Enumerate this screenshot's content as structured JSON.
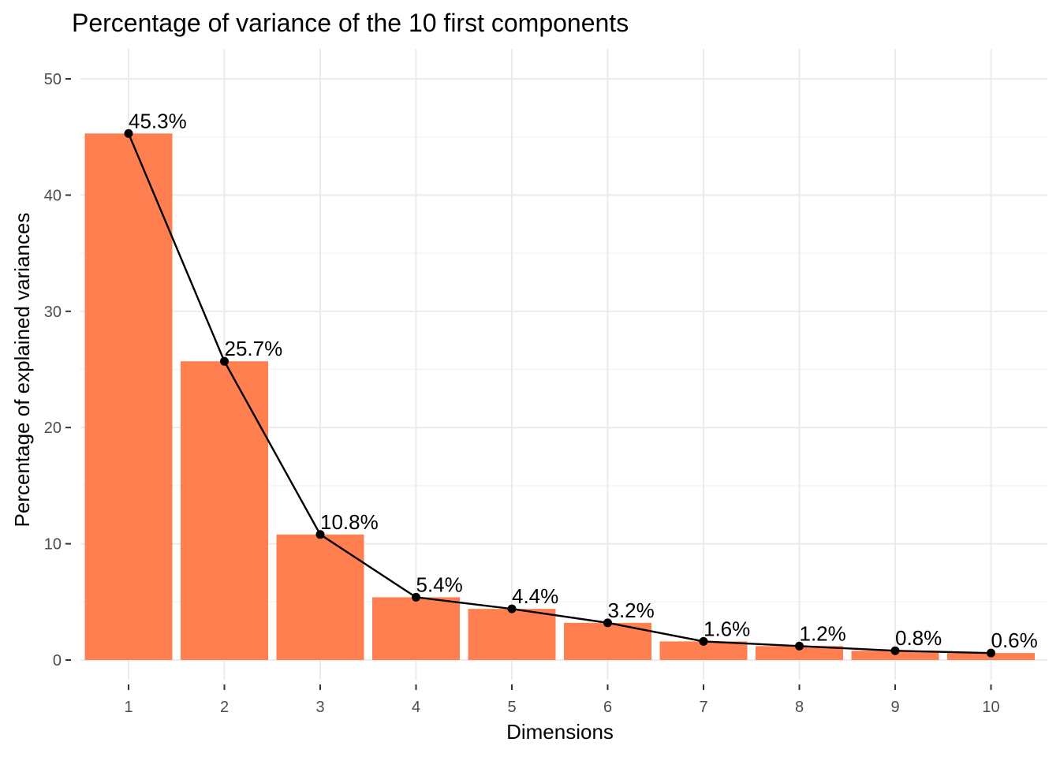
{
  "chart_data": {
    "type": "bar",
    "title": "Percentage of variance of the 10 first components",
    "xlabel": "Dimensions",
    "ylabel": "Percentage of explained variances",
    "categories": [
      "1",
      "2",
      "3",
      "4",
      "5",
      "6",
      "7",
      "8",
      "9",
      "10"
    ],
    "values": [
      45.3,
      25.7,
      10.8,
      5.4,
      4.4,
      3.2,
      1.6,
      1.2,
      0.8,
      0.6
    ],
    "data_labels": [
      "45.3%",
      "25.7%",
      "10.8%",
      "5.4%",
      "4.4%",
      "3.2%",
      "1.6%",
      "1.2%",
      "0.8%",
      "0.6%"
    ],
    "ylim": [
      0,
      50
    ],
    "yticks": [
      0,
      10,
      20,
      30,
      40,
      50
    ],
    "grid": true,
    "overlay_line": true,
    "colors": {
      "bar": "#FF7F50",
      "line": "#000000",
      "point": "#000000"
    }
  }
}
